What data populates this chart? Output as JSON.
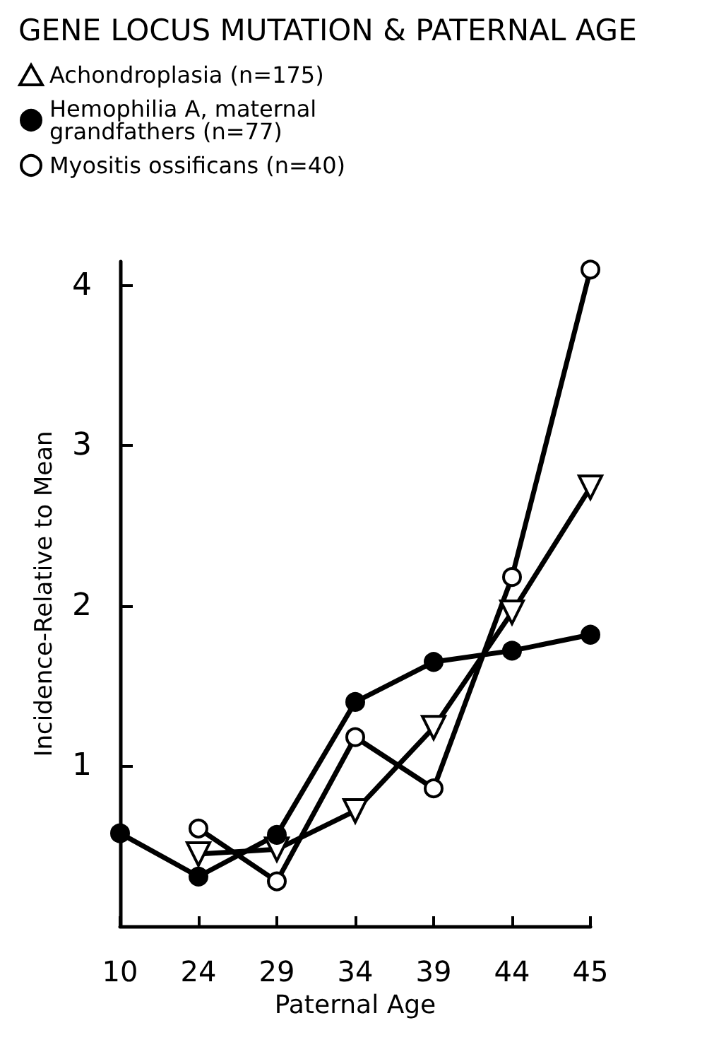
{
  "chart_data": {
    "type": "line",
    "title": "GENE LOCUS MUTATION & PATERNAL AGE",
    "xlabel": "Paternal Age",
    "ylabel": "Incidence-Relative to Mean",
    "categories": [
      "10",
      "24",
      "29",
      "34",
      "39",
      "44",
      "45"
    ],
    "series": [
      {
        "name": "Achondroplasia (n=175)",
        "color": "#000000",
        "marker": "triangle",
        "values": [
          null,
          0.45,
          0.48,
          0.72,
          1.24,
          1.96,
          2.74
        ]
      },
      {
        "name": "Hemophilia A, maternal\ngrandfathers (n=77)",
        "color": "#000000",
        "marker": "circle",
        "values": [
          0.58,
          0.31,
          0.57,
          1.4,
          1.65,
          1.72,
          1.82
        ]
      },
      {
        "name": "Myositis ossificans (n=40)",
        "color": "#000000",
        "marker": "open circle",
        "values": [
          null,
          0.61,
          0.28,
          1.18,
          0.86,
          2.18,
          4.1
        ]
      }
    ],
    "ylim": [
      0,
      4.15
    ],
    "yticks": [
      1,
      2,
      3,
      4
    ],
    "grid": false,
    "legend": "top left",
    "line_style": "solid"
  }
}
